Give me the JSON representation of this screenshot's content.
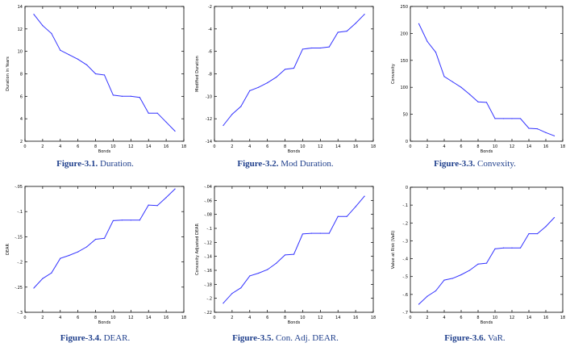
{
  "figures": [
    {
      "caption": {
        "label": "Figure-3.1.",
        "title": "Duration."
      },
      "chart_data": {
        "type": "line",
        "title": "",
        "xlabel": "Bonds",
        "ylabel": "Duration in Years",
        "xlim": [
          0,
          18
        ],
        "ylim": [
          2,
          14
        ],
        "xticks": [
          0,
          2,
          4,
          6,
          8,
          10,
          12,
          14,
          16,
          18
        ],
        "yticks": [
          2,
          4,
          6,
          8,
          10,
          12,
          14
        ],
        "x": [
          1,
          2,
          3,
          4,
          5,
          6,
          7,
          8,
          9,
          10,
          11,
          12,
          13,
          14,
          15,
          16,
          17
        ],
        "values": [
          13.3,
          12.3,
          11.6,
          10.1,
          9.7,
          9.3,
          8.8,
          8.0,
          7.9,
          6.1,
          6.0,
          6.0,
          5.9,
          4.5,
          4.5,
          3.7,
          2.9
        ],
        "color": "#3333ff"
      }
    },
    {
      "caption": {
        "label": "Figure-3.2.",
        "title": "Mod Duration."
      },
      "chart_data": {
        "type": "line",
        "title": "",
        "xlabel": "Bonds",
        "ylabel": "Modified Duration",
        "xlim": [
          0,
          18
        ],
        "ylim": [
          -14,
          -2
        ],
        "xticks": [
          0,
          2,
          4,
          6,
          8,
          10,
          12,
          14,
          16,
          18
        ],
        "yticks": [
          -14,
          -12,
          -10,
          -8,
          -6,
          -4,
          -2
        ],
        "x": [
          1,
          2,
          3,
          4,
          5,
          6,
          7,
          8,
          9,
          10,
          11,
          12,
          13,
          14,
          15,
          16,
          17
        ],
        "values": [
          -12.6,
          -11.6,
          -10.9,
          -9.5,
          -9.2,
          -8.8,
          -8.3,
          -7.6,
          -7.5,
          -5.8,
          -5.7,
          -5.7,
          -5.6,
          -4.3,
          -4.2,
          -3.5,
          -2.7
        ],
        "color": "#3333ff"
      }
    },
    {
      "caption": {
        "label": "Figure-3.3.",
        "title": "Convexity."
      },
      "chart_data": {
        "type": "line",
        "title": "",
        "xlabel": "Bonds",
        "ylabel": "Convexity",
        "xlim": [
          0,
          18
        ],
        "ylim": [
          0,
          250
        ],
        "xticks": [
          0,
          2,
          4,
          6,
          8,
          10,
          12,
          14,
          16,
          18
        ],
        "yticks": [
          0,
          50,
          100,
          150,
          200,
          250
        ],
        "x": [
          1,
          2,
          3,
          4,
          5,
          6,
          7,
          8,
          9,
          10,
          11,
          12,
          13,
          14,
          15,
          16,
          17
        ],
        "values": [
          218,
          185,
          165,
          120,
          110,
          100,
          87,
          73,
          72,
          42,
          42,
          42,
          42,
          24,
          23,
          16,
          10
        ],
        "color": "#3333ff"
      }
    },
    {
      "caption": {
        "label": "Figure-3.4.",
        "title": "DEAR."
      },
      "chart_data": {
        "type": "line",
        "title": "",
        "xlabel": "Bonds",
        "ylabel": "DEAR",
        "xlim": [
          0,
          18
        ],
        "ylim": [
          -0.3,
          -0.05
        ],
        "xticks": [
          0,
          2,
          4,
          6,
          8,
          10,
          12,
          14,
          16,
          18
        ],
        "yticks": [
          -0.3,
          -0.25,
          -0.2,
          -0.15,
          -0.1,
          -0.05
        ],
        "x": [
          1,
          2,
          3,
          4,
          5,
          6,
          7,
          8,
          9,
          10,
          11,
          12,
          13,
          14,
          15,
          16,
          17
        ],
        "values": [
          -0.252,
          -0.233,
          -0.222,
          -0.193,
          -0.187,
          -0.18,
          -0.17,
          -0.155,
          -0.153,
          -0.118,
          -0.117,
          -0.117,
          -0.117,
          -0.087,
          -0.088,
          -0.072,
          -0.055
        ],
        "color": "#3333ff"
      }
    },
    {
      "caption": {
        "label": "Figure-3.5.",
        "title": "Con. Adj. DEAR."
      },
      "chart_data": {
        "type": "line",
        "title": "",
        "xlabel": "Bonds",
        "ylabel": "Convexity Adjusted DEAR",
        "xlim": [
          0,
          18
        ],
        "ylim": [
          -0.22,
          -0.04
        ],
        "xticks": [
          0,
          2,
          4,
          6,
          8,
          10,
          12,
          14,
          16,
          18
        ],
        "yticks": [
          -0.22,
          -0.2,
          -0.18,
          -0.16,
          -0.14,
          -0.12,
          -0.1,
          -0.08,
          -0.06,
          -0.04
        ],
        "x": [
          1,
          2,
          3,
          4,
          5,
          6,
          7,
          8,
          9,
          10,
          11,
          12,
          13,
          14,
          15,
          16,
          17
        ],
        "values": [
          -0.207,
          -0.193,
          -0.185,
          -0.168,
          -0.164,
          -0.159,
          -0.15,
          -0.138,
          -0.137,
          -0.108,
          -0.107,
          -0.107,
          -0.107,
          -0.083,
          -0.083,
          -0.069,
          -0.054
        ],
        "color": "#3333ff"
      }
    },
    {
      "caption": {
        "label": "Figure-3.6.",
        "title": "VaR."
      },
      "chart_data": {
        "type": "line",
        "title": "",
        "xlabel": "Bonds",
        "ylabel": "Value at Risk (VaR)",
        "xlim": [
          0,
          18
        ],
        "ylim": [
          -0.7,
          0
        ],
        "xticks": [
          0,
          2,
          4,
          6,
          8,
          10,
          12,
          14,
          16,
          18
        ],
        "yticks": [
          -0.7,
          -0.6,
          -0.5,
          -0.4,
          -0.3,
          -0.2,
          -0.1,
          0
        ],
        "x": [
          1,
          2,
          3,
          4,
          5,
          6,
          7,
          8,
          9,
          10,
          11,
          12,
          13,
          14,
          15,
          16,
          17
        ],
        "values": [
          -0.655,
          -0.61,
          -0.58,
          -0.52,
          -0.51,
          -0.49,
          -0.465,
          -0.43,
          -0.425,
          -0.345,
          -0.34,
          -0.34,
          -0.34,
          -0.26,
          -0.26,
          -0.22,
          -0.17
        ],
        "color": "#3333ff"
      }
    }
  ]
}
